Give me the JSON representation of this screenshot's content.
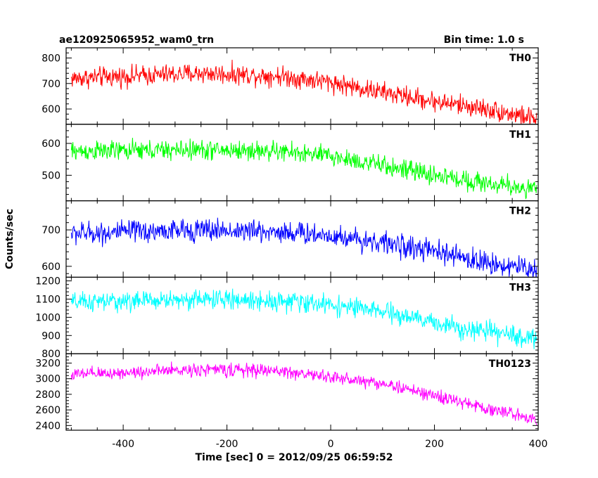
{
  "chart_data": {
    "type": "line",
    "title": "ae120925065952_wam0_trn",
    "bin_time_label": "Bin time: 1.0 s",
    "xlabel": "Time [sec] 0 = 2012/09/25 06:59:52",
    "ylabel": "Counts/sec",
    "xlim": [
      -510,
      400
    ],
    "x_ticks": [
      -400,
      -200,
      0,
      200,
      400
    ],
    "grid": false,
    "panels": [
      {
        "name": "TH0",
        "color": "#ff0000",
        "ylim": [
          540,
          840
        ],
        "y_ticks": [
          600,
          700,
          800
        ],
        "trend": [
          [
            -500,
            720
          ],
          [
            -250,
            740
          ],
          [
            -100,
            730
          ],
          [
            0,
            705
          ],
          [
            100,
            665
          ],
          [
            200,
            630
          ],
          [
            300,
            600
          ],
          [
            400,
            560
          ]
        ],
        "noise": 28
      },
      {
        "name": "TH1",
        "color": "#00ff00",
        "ylim": [
          420,
          660
        ],
        "y_ticks": [
          500,
          600
        ],
        "trend": [
          [
            -500,
            575
          ],
          [
            -250,
            580
          ],
          [
            -100,
            575
          ],
          [
            0,
            560
          ],
          [
            100,
            530
          ],
          [
            200,
            500
          ],
          [
            300,
            475
          ],
          [
            400,
            455
          ]
        ],
        "noise": 22
      },
      {
        "name": "TH2",
        "color": "#0000ff",
        "ylim": [
          570,
          780
        ],
        "y_ticks": [
          600,
          700
        ],
        "trend": [
          [
            -500,
            690
          ],
          [
            -250,
            700
          ],
          [
            -100,
            695
          ],
          [
            0,
            685
          ],
          [
            100,
            665
          ],
          [
            200,
            640
          ],
          [
            300,
            610
          ],
          [
            400,
            590
          ]
        ],
        "noise": 22
      },
      {
        "name": "TH3",
        "color": "#00ffff",
        "ylim": [
          800,
          1220
        ],
        "y_ticks": [
          800,
          900,
          1000,
          1100,
          1200
        ],
        "trend": [
          [
            -500,
            1080
          ],
          [
            -250,
            1100
          ],
          [
            -100,
            1090
          ],
          [
            0,
            1070
          ],
          [
            100,
            1030
          ],
          [
            200,
            970
          ],
          [
            300,
            920
          ],
          [
            400,
            880
          ]
        ],
        "noise": 38
      },
      {
        "name": "TH0123",
        "color": "#ff00ff",
        "ylim": [
          2340,
          3320
        ],
        "y_ticks": [
          2400,
          2600,
          2800,
          3000,
          3200
        ],
        "trend": [
          [
            -500,
            3050
          ],
          [
            -250,
            3120
          ],
          [
            -100,
            3100
          ],
          [
            0,
            3020
          ],
          [
            100,
            2940
          ],
          [
            200,
            2780
          ],
          [
            300,
            2620
          ],
          [
            400,
            2480
          ]
        ],
        "noise": 60
      }
    ]
  }
}
